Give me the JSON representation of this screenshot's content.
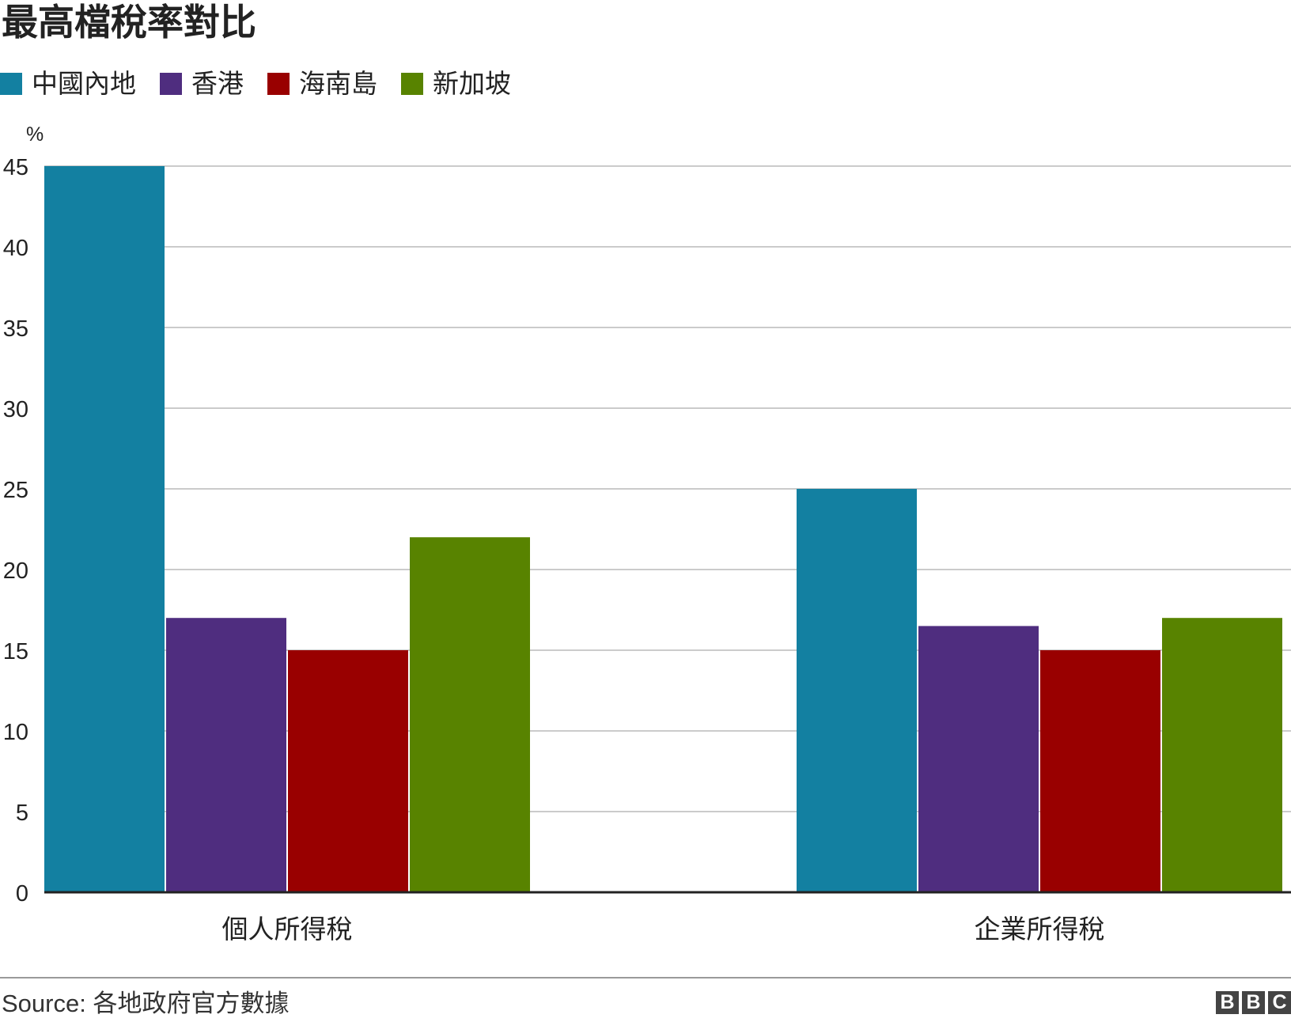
{
  "colors": {
    "mainland": "#1380A1",
    "hongkong": "#4F2D7F",
    "hainan": "#990000",
    "singapore": "#588300",
    "grid": "#cbcbcb",
    "axis": "#222222"
  },
  "chart_data": {
    "type": "bar",
    "title": "最高檔稅率對比",
    "ylabel": "%",
    "xlabel": "",
    "ylim": [
      0,
      45
    ],
    "yticks": [
      0,
      5,
      10,
      15,
      20,
      25,
      30,
      35,
      40,
      45
    ],
    "categories": [
      "個人所得稅",
      "企業所得稅"
    ],
    "grid": true,
    "legend_position": "top-left",
    "series": [
      {
        "name": "中國內地",
        "color": "#1380A1",
        "values": [
          45,
          25
        ]
      },
      {
        "name": "香港",
        "color": "#4F2D7F",
        "values": [
          17,
          16.5
        ]
      },
      {
        "name": "海南島",
        "color": "#990000",
        "values": [
          15,
          15
        ]
      },
      {
        "name": "新加坡",
        "color": "#588300",
        "values": [
          22,
          17
        ]
      }
    ]
  },
  "footer": {
    "source": "Source: 各地政府官方數據",
    "logo_letters": [
      "B",
      "B",
      "C"
    ]
  }
}
